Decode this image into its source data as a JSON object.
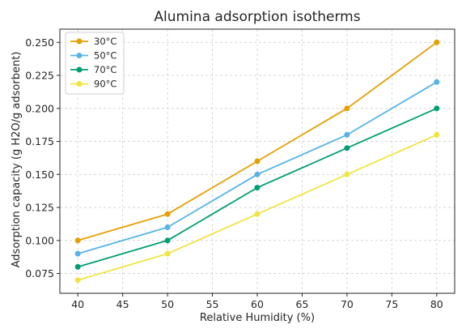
{
  "chart_data": {
    "type": "line",
    "title": "Alumina adsorption isotherms",
    "xlabel": "Relative Humidity (%)",
    "ylabel": "Adsorption capacity (g H2O/g adsorbent)",
    "x": [
      40,
      50,
      60,
      70,
      80
    ],
    "xlim": [
      38,
      82
    ],
    "ylim": [
      0.06,
      0.26
    ],
    "xticks": [
      40,
      45,
      50,
      55,
      60,
      65,
      70,
      75,
      80
    ],
    "yticks": [
      0.075,
      0.1,
      0.125,
      0.15,
      0.175,
      0.2,
      0.225,
      0.25
    ],
    "grid": true,
    "legend_position": "top-left",
    "series": [
      {
        "name": "30°C",
        "color": "#E69F00",
        "values": [
          0.1,
          0.12,
          0.16,
          0.2,
          0.25
        ]
      },
      {
        "name": "50°C",
        "color": "#56B4E9",
        "values": [
          0.09,
          0.11,
          0.15,
          0.18,
          0.22
        ]
      },
      {
        "name": "70°C",
        "color": "#009E73",
        "values": [
          0.08,
          0.1,
          0.14,
          0.17,
          0.2
        ]
      },
      {
        "name": "90°C",
        "color": "#F0E442",
        "values": [
          0.07,
          0.09,
          0.12,
          0.15,
          0.18
        ]
      }
    ]
  }
}
